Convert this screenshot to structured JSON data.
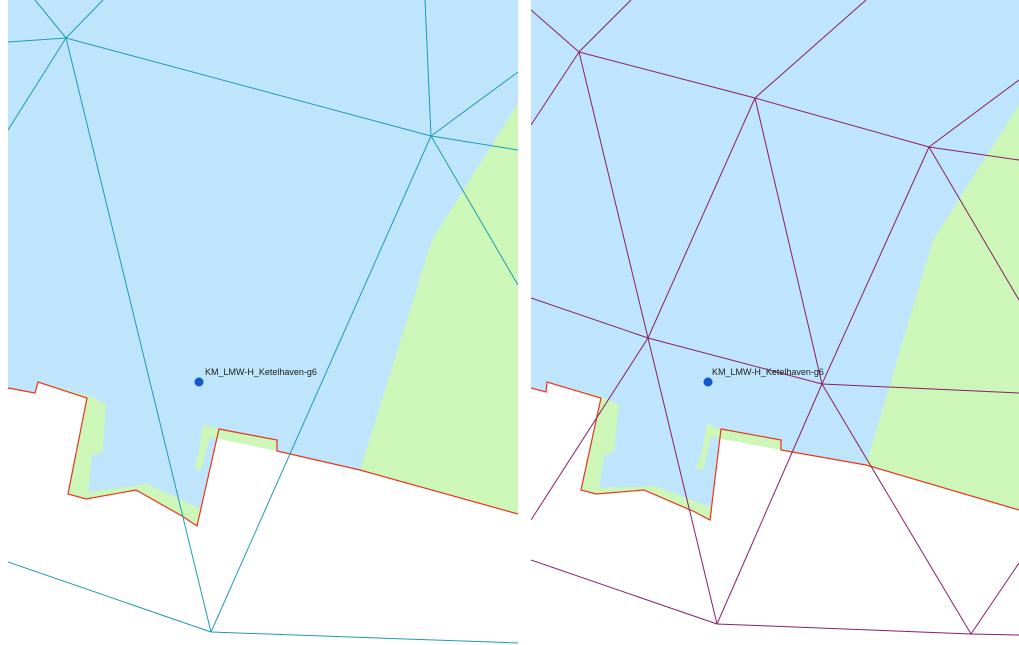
{
  "maps": [
    {
      "id": "left",
      "location_label": "KM_LMW-H_Ketelhaven-g6",
      "mesh_color": "#1f9bb3"
    },
    {
      "id": "right",
      "location_label": "KM_LMW-H_Ketelhaven-g6",
      "mesh_color": "#8a1f66"
    }
  ],
  "colors": {
    "water": "#bee5fb",
    "land": "#ccf7b8",
    "background": "#ffffff",
    "boundary": "#e8341c",
    "location_point": "#1259cf"
  }
}
